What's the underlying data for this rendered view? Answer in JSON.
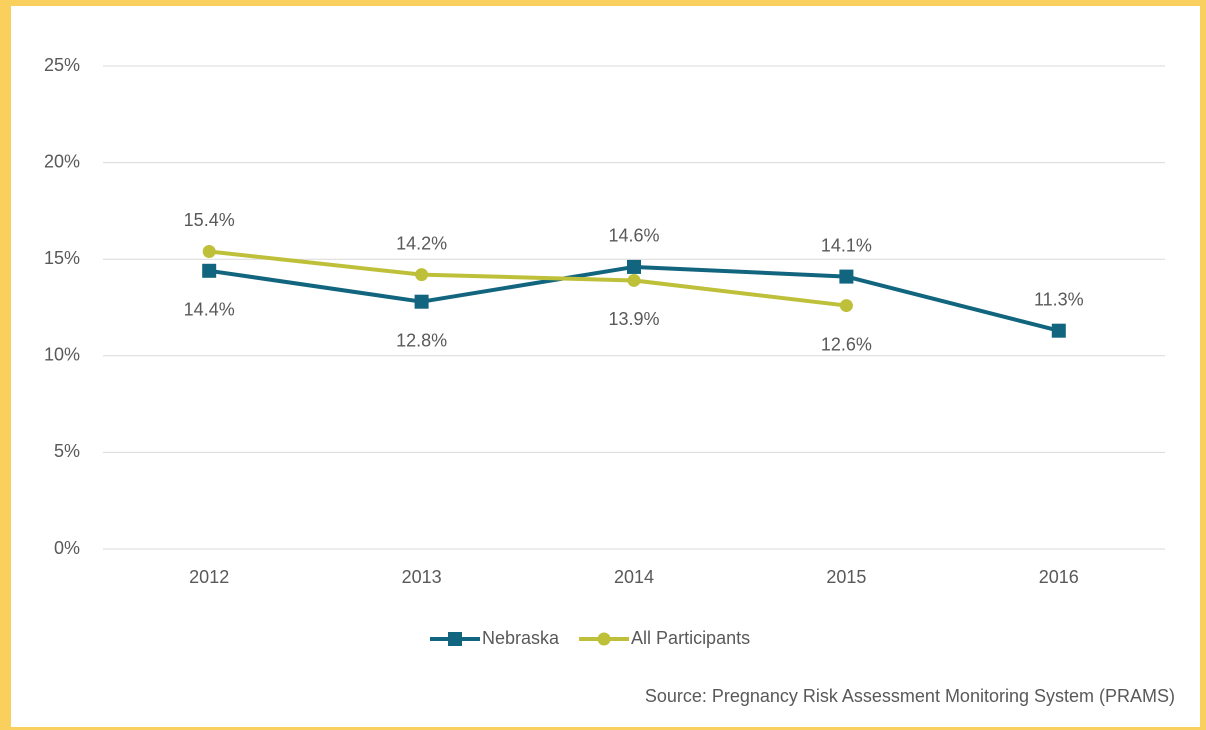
{
  "chart_data": {
    "type": "line",
    "categories": [
      "2012",
      "2013",
      "2014",
      "2015",
      "2016"
    ],
    "series": [
      {
        "name": "Nebraska",
        "color": "#12657e",
        "marker": "square",
        "values": [
          14.4,
          12.8,
          14.6,
          14.1,
          11.3
        ],
        "value_labels": [
          "14.4%",
          "12.8%",
          "14.6%",
          "14.1%",
          "11.3%"
        ]
      },
      {
        "name": "All Participants",
        "color": "#bec03a",
        "marker": "circle",
        "values": [
          15.4,
          14.2,
          13.9,
          12.6,
          null
        ],
        "value_labels": [
          "15.4%",
          "14.2%",
          "13.9%",
          "12.6%",
          null
        ]
      }
    ],
    "ylim": [
      0,
      25
    ],
    "yticks": [
      {
        "value": 0,
        "label": "0%"
      },
      {
        "value": 5,
        "label": "5%"
      },
      {
        "value": 10,
        "label": "10%"
      },
      {
        "value": 15,
        "label": "15%"
      },
      {
        "value": 20,
        "label": "20%"
      },
      {
        "value": 25,
        "label": "25%"
      }
    ],
    "grid": true,
    "legend": "bottom",
    "source": "Source: Pregnancy Risk Assessment Monitoring System (PRAMS)"
  }
}
